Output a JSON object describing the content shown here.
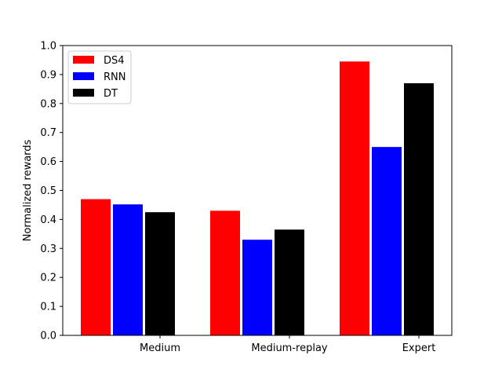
{
  "chart_data": {
    "type": "bar",
    "title": "",
    "xlabel": "",
    "ylabel": "Normalized rewards",
    "categories": [
      "Medium",
      "Medium-replay",
      "Expert"
    ],
    "series": [
      {
        "name": "DS4",
        "color": "#ff0000",
        "values": [
          0.47,
          0.43,
          0.945
        ]
      },
      {
        "name": "RNN",
        "color": "#0000ff",
        "values": [
          0.452,
          0.33,
          0.65
        ]
      },
      {
        "name": "DT",
        "color": "#000000",
        "values": [
          0.425,
          0.365,
          0.87
        ]
      }
    ],
    "ylim": [
      0.0,
      1.0
    ],
    "yticks": [
      "0.0",
      "0.1",
      "0.2",
      "0.3",
      "0.4",
      "0.5",
      "0.6",
      "0.7",
      "0.8",
      "0.9",
      "1.0"
    ],
    "grid": false,
    "legend_position": "top-left"
  }
}
